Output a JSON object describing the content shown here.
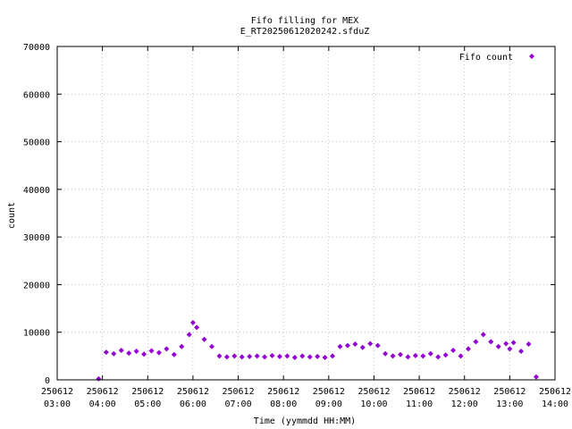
{
  "chart_data": {
    "type": "scatter",
    "title": "Fifo filling for MEX",
    "subtitle": "E_RT20250612020242.sfduZ",
    "xlabel": "Time (yymmdd HH:MM)",
    "ylabel": "count",
    "ylim": [
      0,
      70000
    ],
    "xlim": [
      "250612 03:00",
      "250612 14:00"
    ],
    "y_ticks": [
      0,
      10000,
      20000,
      30000,
      40000,
      50000,
      60000,
      70000
    ],
    "x_ticks": [
      {
        "date": "250612",
        "time": "03:00"
      },
      {
        "date": "250612",
        "time": "04:00"
      },
      {
        "date": "250612",
        "time": "05:00"
      },
      {
        "date": "250612",
        "time": "06:00"
      },
      {
        "date": "250612",
        "time": "07:00"
      },
      {
        "date": "250612",
        "time": "08:00"
      },
      {
        "date": "250612",
        "time": "09:00"
      },
      {
        "date": "250612",
        "time": "10:00"
      },
      {
        "date": "250612",
        "time": "11:00"
      },
      {
        "date": "250612",
        "time": "12:00"
      },
      {
        "date": "250612",
        "time": "13:00"
      },
      {
        "date": "250612",
        "time": "14:00"
      }
    ],
    "grid": true,
    "legend_position": "top-right",
    "series": [
      {
        "name": "Fifo count",
        "color": "#9400d3",
        "marker": "diamond",
        "x": [
          "250612 03:55",
          "250612 04:05",
          "250612 04:15",
          "250612 04:25",
          "250612 04:35",
          "250612 04:45",
          "250612 04:55",
          "250612 05:05",
          "250612 05:15",
          "250612 05:25",
          "250612 05:35",
          "250612 05:45",
          "250612 05:55",
          "250612 06:00",
          "250612 06:05",
          "250612 06:15",
          "250612 06:25",
          "250612 06:35",
          "250612 06:45",
          "250612 06:55",
          "250612 07:05",
          "250612 07:15",
          "250612 07:25",
          "250612 07:35",
          "250612 07:45",
          "250612 07:55",
          "250612 08:05",
          "250612 08:15",
          "250612 08:25",
          "250612 08:35",
          "250612 08:45",
          "250612 08:55",
          "250612 09:05",
          "250612 09:15",
          "250612 09:25",
          "250612 09:35",
          "250612 09:45",
          "250612 09:55",
          "250612 10:05",
          "250612 10:15",
          "250612 10:25",
          "250612 10:35",
          "250612 10:45",
          "250612 10:55",
          "250612 11:05",
          "250612 11:15",
          "250612 11:25",
          "250612 11:35",
          "250612 11:45",
          "250612 11:55",
          "250612 12:05",
          "250612 12:15",
          "250612 12:25",
          "250612 12:35",
          "250612 12:45",
          "250612 12:55",
          "250612 13:00",
          "250612 13:05",
          "250612 13:15",
          "250612 13:25",
          "250612 13:35"
        ],
        "y": [
          200,
          5800,
          5500,
          6200,
          5600,
          6000,
          5400,
          6100,
          5700,
          6500,
          5300,
          7000,
          9500,
          12000,
          11000,
          8500,
          7000,
          5000,
          4800,
          5000,
          4800,
          4900,
          5000,
          4800,
          5100,
          4900,
          5000,
          4700,
          5000,
          4800,
          4900,
          4700,
          5000,
          7000,
          7200,
          7500,
          6800,
          7600,
          7200,
          5500,
          5000,
          5300,
          4800,
          5100,
          5000,
          5500,
          4800,
          5200,
          6200,
          5000,
          6500,
          8000,
          9500,
          8000,
          7000,
          7600,
          6500,
          7800,
          6000,
          7500,
          600
        ]
      }
    ]
  }
}
